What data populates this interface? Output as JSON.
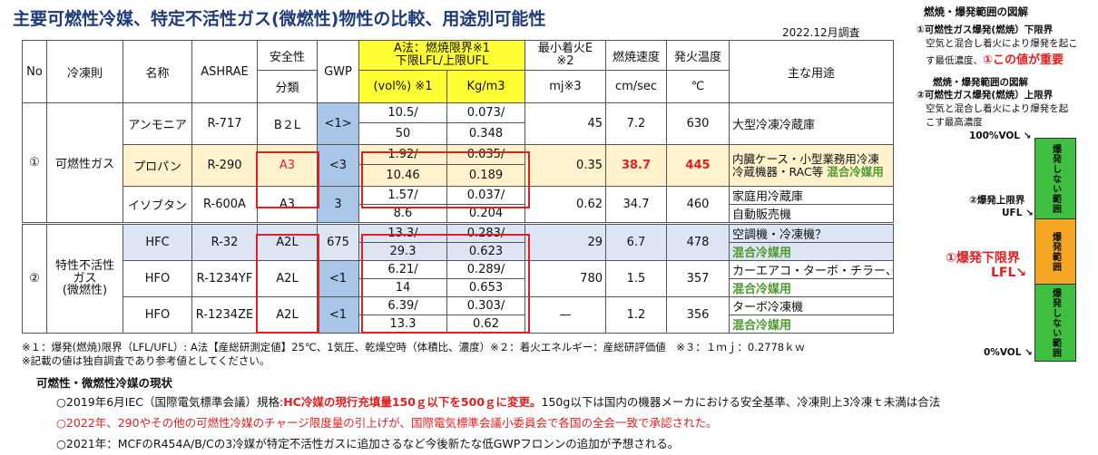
{
  "title": "主要可燃性冷媒、特定不活性ガス(微燃性)物性の比較、用途別可能性",
  "survey_date": "2022.12月調査",
  "headers": {
    "no": "No",
    "refrigerant_class": "冷凍則",
    "name": "名称",
    "ashrae": "ASHRAE",
    "safety": "安全性",
    "safety_sub": "分類",
    "gwp": "GWP",
    "lfl_line1": "A法：燃焼限界※1",
    "lfl_line2": "下限LFL/上限UFL",
    "vol": "(vol%) ※1",
    "kgm3": "Kg/m3",
    "mie_line1": "最小着火E",
    "mie_line2": "※2",
    "mie_unit": "mj※3",
    "burn_speed": "燃焼速度",
    "burn_unit": "cm/sec",
    "ignition_temp": "発火温度",
    "ignition_unit": "℃",
    "usage": "主な用途"
  },
  "groups": [
    {
      "no": "①",
      "class": "可燃性ガス"
    },
    {
      "no": "②",
      "class_line1": "特性不活性",
      "class_line2": "ガス",
      "class_line3": "(微燃性)"
    }
  ],
  "rows": [
    {
      "name": "アンモニア",
      "ashrae": "R-717",
      "safety": "B２L",
      "gwp": "<1>",
      "vol_l": "10.5/",
      "vol_u": "50",
      "kg_l": "0.073/",
      "kg_u": "0.348",
      "mie": "45",
      "speed": "7.2",
      "temp": "630",
      "usage1": "大型冷凍冷蔵庫",
      "usage2": ""
    },
    {
      "name": "プロパン",
      "ashrae": "R-290",
      "safety": "A3",
      "gwp": "<3",
      "vol_l": "1.92/",
      "vol_u": "10.46",
      "kg_l": "0.035/",
      "kg_u": "0.189",
      "mie": "0.35",
      "speed": "38.7",
      "temp": "445",
      "usage1": "内臓ケース・小型業務用冷凍冷蔵機器・RAC等",
      "usage2": "混合冷媒用"
    },
    {
      "name": "イソブタン",
      "ashrae": "R-600A",
      "safety": "A3",
      "gwp": "3",
      "vol_l": "1.57/",
      "vol_u": "8.6",
      "kg_l": "0.037/",
      "kg_u": "0.204",
      "mie": "0.62",
      "speed": "34.7",
      "temp": "460",
      "usage1": "家庭用冷蔵庫",
      "usage2": "自動販売機"
    },
    {
      "name": "HFC",
      "ashrae": "R-32",
      "safety": "A2L",
      "gwp": "675",
      "vol_l": "13.3/",
      "vol_u": "29.3",
      "kg_l": "0.283/",
      "kg_u": "0.623",
      "mie": "29",
      "speed": "6.7",
      "temp": "478",
      "usage1": "空調機・冷凍機？",
      "usage2": "混合冷媒用"
    },
    {
      "name": "HFO",
      "ashrae": "R-1234YF",
      "safety": "A2L",
      "gwp": "<1",
      "vol_l": "6.21/",
      "vol_u": "14",
      "kg_l": "0.289/",
      "kg_u": "0.653",
      "mie": "780",
      "speed": "1.5",
      "temp": "357",
      "usage1": "カーエアコ・ターボ・チラー、",
      "usage2": "混合冷媒用"
    },
    {
      "name": "HFO",
      "ashrae": "R-1234ZE",
      "safety": "A2L",
      "gwp": "<1",
      "vol_l": "6.39/",
      "vol_u": "13.3",
      "kg_l": "0.303/",
      "kg_u": "0.62",
      "mie": "—",
      "speed": "1.2",
      "temp": "356",
      "usage1": "ターボ冷凍機",
      "usage2": "混合冷媒用"
    }
  ],
  "footnotes": {
    "note1": "※１：爆発(燃焼)限界（LFL/UFL）: A法【産総研測定値】25℃、1気圧、乾燥空時（体積比、濃度）※２：着火エネルギー：産総研評価値　※３：１ｍｊ：0.2778ｋｗ",
    "note2": "※記載の値は独自調査であり参考値としてください。"
  },
  "status": {
    "heading": "可燃性・微燃性冷媒の現状",
    "line1_a": "○2019年6月IEC（国際電気標準会議）規格:",
    "line1_b": "HC冷媒の現行充填量150ｇ以下を500ｇに変更。",
    "line1_c": "150g以下は国内の機器メーカにおける安全基準、冷凍則上3冷凍ｔ未満は合法",
    "line2": "○2022年、290やその他の可燃性冷媒のチャージ限度量の引上げが、国際電気標準会議小委員会で各国の全会一致で承認された。",
    "line3": "○2021年：MCFのR454A/B/Cの3冷媒が特定不活性ガスに追加さるなど今後新たな低GWPフロンンの追加が予想される。"
  },
  "diagram": {
    "title": "燃焼・爆発範囲の図解",
    "item1_head": "①可燃性ガス爆発(燃焼）下限界",
    "item1_l1": "空気と混合し着火により爆発を起こ",
    "item1_l2a": "す最低濃度、",
    "item1_l2b": "①この値が重要",
    "item2_title": "燃焼・爆発範囲の図解",
    "item2_head": "②可燃性ガス爆発(燃焼）上限界",
    "item2_l1": "空気と混合し着火により爆発を起",
    "item2_l2": "こす最高濃度",
    "label_100": "100%VOL",
    "label_ufl1": "②爆発上限界",
    "label_ufl2": "UFL",
    "label_lfl1": "①爆発下限界",
    "label_lfl2": "LFL",
    "label_0": "0%VOL",
    "seg_top": "爆発しない範囲",
    "seg_mid": "爆発範囲",
    "seg_bot": "爆発しない範囲",
    "colors": {
      "safe": "#3fbf3f",
      "explosive": "#f5a623",
      "accent_red": "#e02020"
    }
  }
}
